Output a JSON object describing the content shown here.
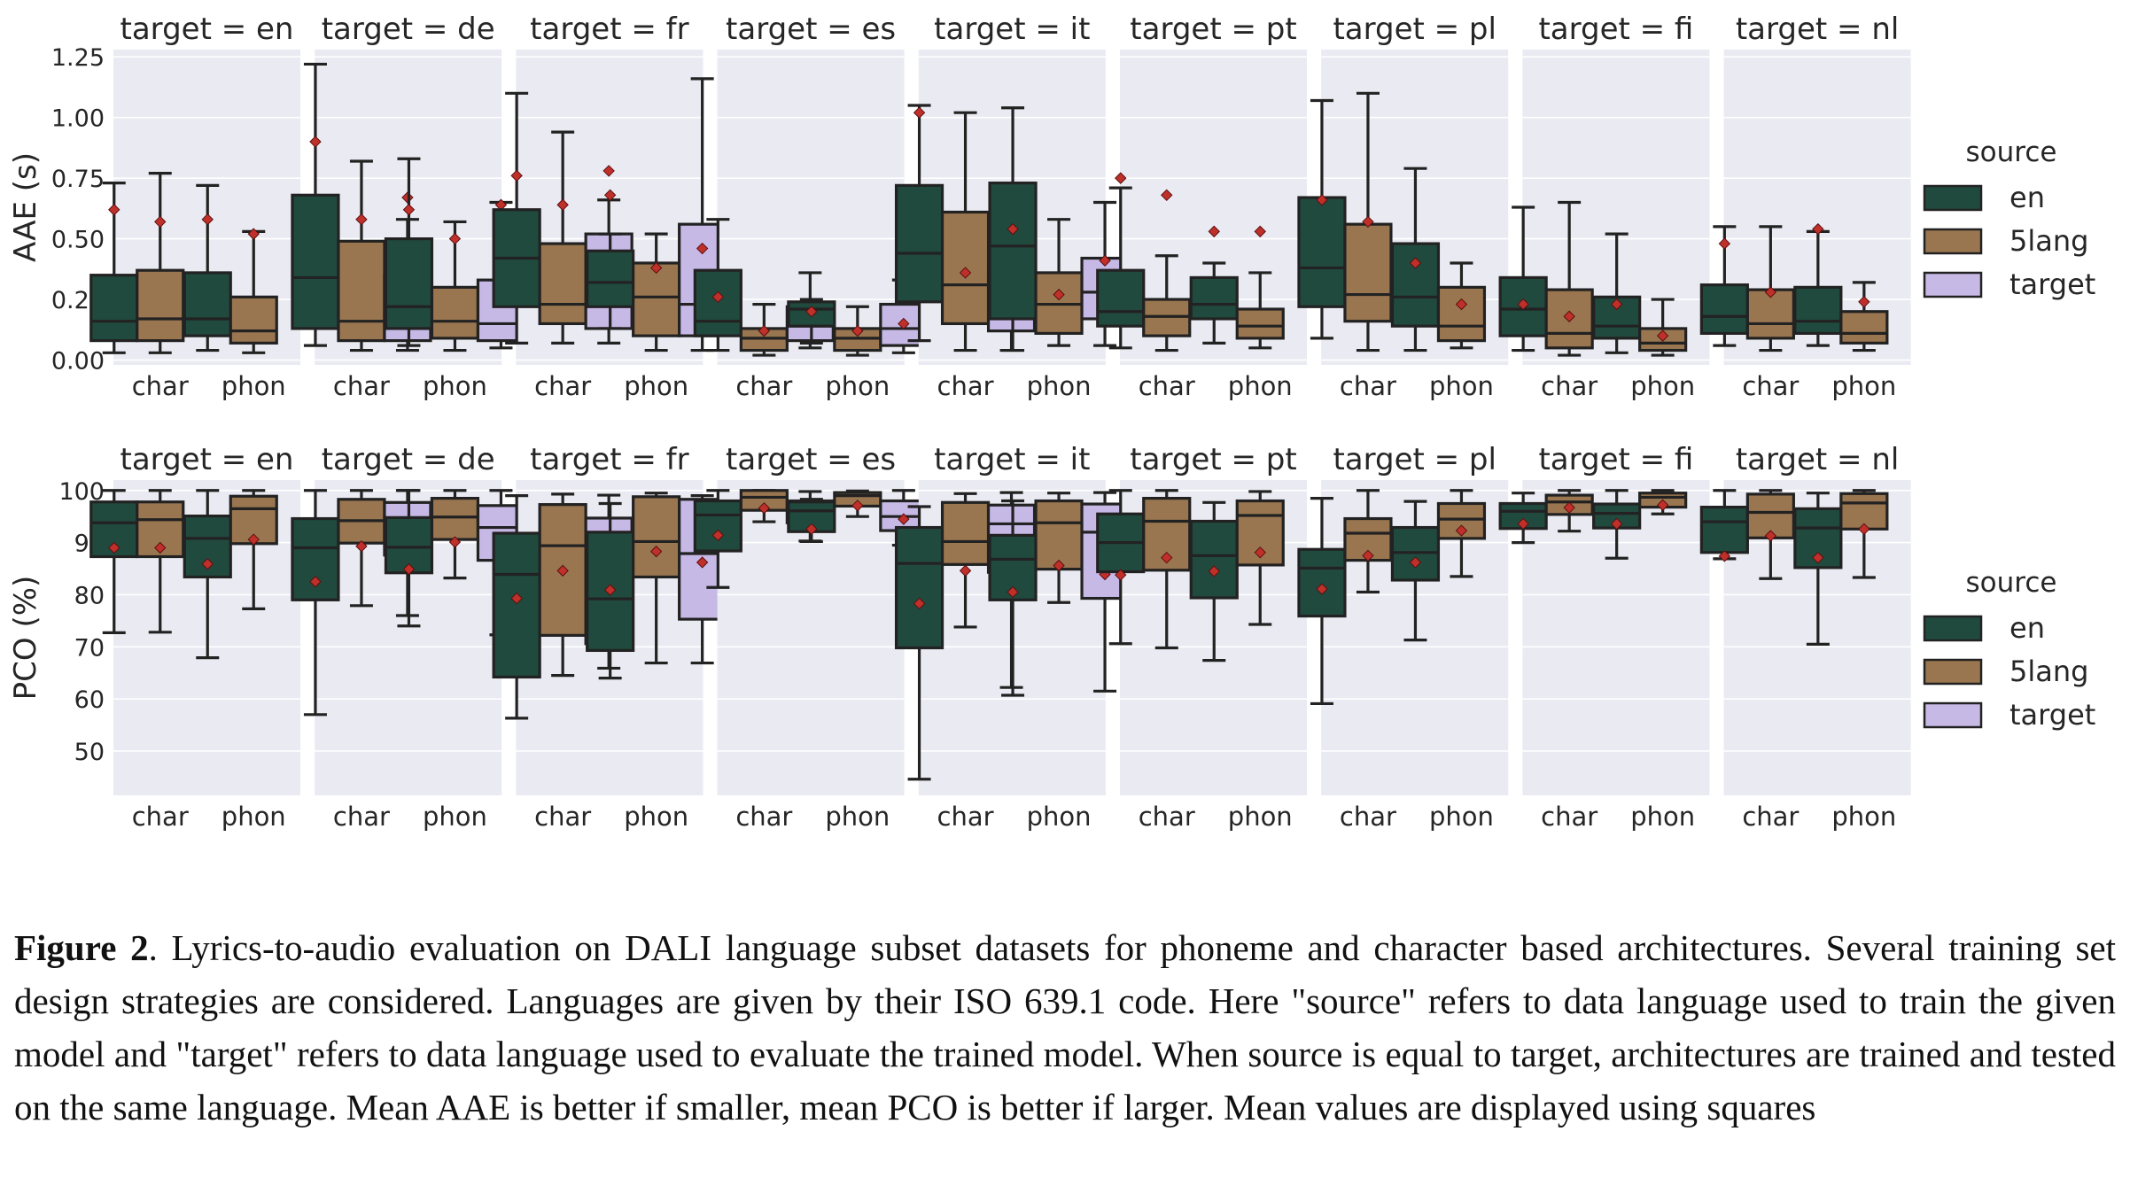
{
  "legend": {
    "title": "source",
    "entries": [
      {
        "label": "en",
        "color": "#214a3e"
      },
      {
        "label": "5lang",
        "color": "#9a7650"
      },
      {
        "label": "target",
        "color": "#c7b9e6"
      }
    ]
  },
  "mean_marker_color": "#c0302a",
  "chart_data": [
    {
      "type": "box",
      "facet_label_prefix": "target = ",
      "targets": [
        "en",
        "de",
        "fr",
        "es",
        "it",
        "pt",
        "pl",
        "fi",
        "nl"
      ],
      "categories": [
        "char",
        "phon"
      ],
      "sources": [
        "en",
        "5lang",
        "target"
      ],
      "ylabel": "AAE (s)",
      "ylim": [
        -0.02,
        1.28
      ],
      "yticks": [
        0.0,
        0.25,
        0.5,
        0.75,
        1.0,
        1.25
      ],
      "ytick_labels": [
        "0.00",
        "0.25",
        "0.50",
        "0.75",
        "1.00",
        "1.25"
      ],
      "grid": true,
      "boxes": {
        "en": {
          "char": {
            "en": [
              0.03,
              0.08,
              0.16,
              0.35,
              0.73,
              0.62
            ],
            "5lang": [
              0.03,
              0.08,
              0.17,
              0.37,
              0.77,
              0.57
            ]
          },
          "phon": {
            "en": [
              0.04,
              0.1,
              0.17,
              0.36,
              0.72,
              0.58
            ],
            "5lang": [
              0.03,
              0.07,
              0.12,
              0.26,
              0.53,
              0.52
            ]
          }
        },
        "de": {
          "char": {
            "en": [
              0.06,
              0.13,
              0.34,
              0.68,
              1.22,
              0.9
            ],
            "5lang": [
              0.04,
              0.08,
              0.16,
              0.49,
              0.82,
              0.58
            ],
            "target": [
              0.04,
              0.08,
              0.17,
              0.35,
              0.58,
              0.67
            ]
          },
          "phon": {
            "en": [
              0.06,
              0.13,
              0.22,
              0.5,
              0.83,
              0.62
            ],
            "5lang": [
              0.04,
              0.09,
              0.16,
              0.3,
              0.57,
              0.5
            ],
            "target": [
              0.05,
              0.08,
              0.15,
              0.33,
              0.65,
              0.64
            ]
          }
        },
        "fr": {
          "char": {
            "en": [
              0.07,
              0.22,
              0.42,
              0.62,
              1.1,
              0.76
            ],
            "5lang": [
              0.07,
              0.15,
              0.23,
              0.48,
              0.94,
              0.64
            ],
            "target": [
              0.07,
              0.13,
              0.42,
              0.52,
              0.66,
              0.78
            ]
          },
          "phon": {
            "en": [
              0.13,
              0.22,
              0.32,
              0.45,
              0.52,
              0.68
            ],
            "5lang": [
              0.04,
              0.1,
              0.26,
              0.4,
              0.52,
              0.38
            ],
            "target": [
              0.04,
              0.1,
              0.23,
              0.56,
              1.16,
              0.46
            ]
          }
        },
        "es": {
          "char": {
            "en": [
              0.04,
              0.1,
              0.16,
              0.37,
              0.58,
              0.26
            ],
            "5lang": [
              0.02,
              0.04,
              0.09,
              0.13,
              0.23,
              0.12
            ],
            "target": [
              0.05,
              0.08,
              0.14,
              0.22,
              0.36,
              0.16
            ]
          },
          "phon": {
            "en": [
              0.07,
              0.14,
              0.21,
              0.24,
              0.25,
              0.2
            ],
            "5lang": [
              0.02,
              0.04,
              0.09,
              0.13,
              0.22,
              0.12
            ],
            "target": [
              0.03,
              0.06,
              0.13,
              0.23,
              0.33,
              0.15
            ]
          }
        },
        "it": {
          "char": {
            "en": [
              0.08,
              0.24,
              0.44,
              0.72,
              1.05,
              1.02
            ],
            "5lang": [
              0.04,
              0.15,
              0.31,
              0.61,
              1.02,
              0.36
            ],
            "target": [
              0.04,
              0.12,
              0.25,
              0.37,
              0.72,
              0.34
            ]
          },
          "phon": {
            "en": [
              0.04,
              0.17,
              0.47,
              0.73,
              1.04,
              0.54
            ],
            "5lang": [
              0.06,
              0.11,
              0.23,
              0.36,
              0.58,
              0.27
            ],
            "target": [
              0.06,
              0.17,
              0.28,
              0.42,
              0.65,
              0.41
            ]
          }
        },
        "pt": {
          "char": {
            "en": [
              0.05,
              0.14,
              0.2,
              0.37,
              0.71,
              0.75
            ],
            "5lang": [
              0.04,
              0.1,
              0.18,
              0.25,
              0.43,
              0.68
            ],
            "target": []
          },
          "phon": {
            "en": [
              0.07,
              0.17,
              0.23,
              0.34,
              0.4,
              0.53
            ],
            "5lang": [
              0.05,
              0.09,
              0.14,
              0.21,
              0.36,
              0.53
            ],
            "target": []
          }
        },
        "pl": {
          "char": {
            "en": [
              0.09,
              0.22,
              0.38,
              0.67,
              1.07,
              0.66
            ],
            "5lang": [
              0.04,
              0.16,
              0.27,
              0.56,
              1.1,
              0.57
            ],
            "target": []
          },
          "phon": {
            "en": [
              0.04,
              0.14,
              0.26,
              0.48,
              0.79,
              0.4
            ],
            "5lang": [
              0.05,
              0.08,
              0.14,
              0.3,
              0.4,
              0.23
            ],
            "target": []
          }
        },
        "fi": {
          "char": {
            "en": [
              0.04,
              0.1,
              0.21,
              0.34,
              0.63,
              0.23
            ],
            "5lang": [
              0.02,
              0.05,
              0.11,
              0.29,
              0.65,
              0.18
            ],
            "target": []
          },
          "phon": {
            "en": [
              0.03,
              0.09,
              0.14,
              0.26,
              0.52,
              0.23
            ],
            "5lang": [
              0.02,
              0.04,
              0.07,
              0.13,
              0.25,
              0.1
            ],
            "target": []
          }
        },
        "nl": {
          "char": {
            "en": [
              0.06,
              0.11,
              0.18,
              0.31,
              0.55,
              0.48
            ],
            "5lang": [
              0.04,
              0.09,
              0.15,
              0.29,
              0.55,
              0.28
            ],
            "target": []
          },
          "phon": {
            "en": [
              0.06,
              0.11,
              0.16,
              0.3,
              0.53,
              0.54
            ],
            "5lang": [
              0.04,
              0.07,
              0.11,
              0.2,
              0.32,
              0.24
            ],
            "target": []
          }
        }
      }
    },
    {
      "type": "box",
      "facet_label_prefix": "target = ",
      "targets": [
        "en",
        "de",
        "fr",
        "es",
        "it",
        "pt",
        "pl",
        "fi",
        "nl"
      ],
      "categories": [
        "char",
        "phon"
      ],
      "sources": [
        "en",
        "5lang",
        "target"
      ],
      "ylabel": "PCO (%)",
      "ylim": [
        41.5,
        102
      ],
      "yticks": [
        50,
        60,
        70,
        80,
        90,
        100
      ],
      "ytick_labels": [
        "50",
        "60",
        "70",
        "80",
        "90",
        "100"
      ],
      "grid": true,
      "boxes": {
        "en": {
          "char": {
            "en": [
              72.7,
              87.3,
              93.8,
              97.8,
              100,
              89
            ],
            "5lang": [
              72.8,
              87.3,
              94.4,
              97.8,
              100,
              89
            ]
          },
          "phon": {
            "en": [
              67.9,
              83.4,
              90.8,
              95.1,
              100,
              85.9
            ],
            "5lang": [
              77.3,
              89.8,
              96.5,
              98.9,
              100,
              90.6
            ]
          }
        },
        "de": {
          "char": {
            "en": [
              57,
              79,
              89,
              94.6,
              100,
              82.5
            ],
            "5lang": [
              77.9,
              89.9,
              94.2,
              98.3,
              100,
              89.3
            ],
            "target": [
              76,
              87.6,
              94,
              97.7,
              100,
              88.1
            ]
          },
          "phon": {
            "en": [
              74,
              84.2,
              89.1,
              94.8,
              100,
              84.9
            ],
            "5lang": [
              83.2,
              90.6,
              94.9,
              98.5,
              100,
              90.1
            ],
            "target": [
              72.3,
              86.6,
              92.9,
              97.1,
              100,
              87.9
            ]
          }
        },
        "fr": {
          "char": {
            "en": [
              56.3,
              64.2,
              83.9,
              91.8,
              99,
              79.3
            ],
            "5lang": [
              64.5,
              72.2,
              89.4,
              97.3,
              99.3,
              84.6
            ],
            "target": [
              65.9,
              70.6,
              83.3,
              94.7,
              99.1,
              82.8
            ]
          },
          "phon": {
            "en": [
              64,
              69.3,
              79.2,
              92,
              97.5,
              80.9
            ],
            "5lang": [
              66.9,
              83.4,
              90.2,
              98.8,
              99.5,
              88.3
            ],
            "target": [
              66.9,
              75.3,
              87.9,
              98.3,
              99,
              86.2
            ]
          }
        },
        "es": {
          "char": {
            "en": [
              81.4,
              88.4,
              95.3,
              98,
              100,
              91.4
            ],
            "5lang": [
              94,
              96.2,
              98.7,
              100,
              100,
              96.6
            ],
            "target": [
              90.3,
              93.8,
              96,
              98,
              99.8,
              96.5
            ]
          },
          "phon": {
            "en": [
              90.2,
              92.1,
              96.1,
              97.8,
              98.3,
              92.6
            ],
            "5lang": [
              95,
              97,
              99,
              99.6,
              99.9,
              97.1
            ],
            "target": [
              89.5,
              92.3,
              95,
              98,
              100,
              94.5
            ]
          }
        },
        "it": {
          "char": {
            "en": [
              44.6,
              69.8,
              86,
              92.9,
              96.9,
              78.3
            ],
            "5lang": [
              73.8,
              85.8,
              90.2,
              97.7,
              99.4,
              84.6
            ],
            "target": [
              62.2,
              84.3,
              93.6,
              97.2,
              99.6,
              84.7
            ]
          },
          "phon": {
            "en": [
              60.7,
              79,
              86.8,
              91.4,
              98,
              80.5
            ],
            "5lang": [
              78.5,
              84.9,
              93.8,
              98,
              99.5,
              85.6
            ],
            "target": [
              61.5,
              79.3,
              92,
              97.4,
              99.6,
              83.9
            ]
          }
        },
        "pt": {
          "char": {
            "en": [
              70.6,
              84.4,
              90,
              95.5,
              100,
              83.8
            ],
            "5lang": [
              69.8,
              84.7,
              94.1,
              98.5,
              100,
              87.1
            ],
            "target": []
          },
          "phon": {
            "en": [
              67.4,
              79.4,
              87.5,
              94.1,
              97.7,
              84.5
            ],
            "5lang": [
              74.3,
              85.7,
              95.2,
              98,
              99.8,
              88.1
            ],
            "target": []
          }
        },
        "pl": {
          "char": {
            "en": [
              59.1,
              75.9,
              85.1,
              88.7,
              98.5,
              81.1
            ],
            "5lang": [
              80.5,
              86.6,
              91.8,
              94.6,
              100,
              87.5
            ],
            "target": []
          },
          "phon": {
            "en": [
              71.3,
              82.8,
              88.1,
              92.9,
              97.9,
              86.2
            ],
            "5lang": [
              83.5,
              90.8,
              94.5,
              97.5,
              100,
              92.3
            ],
            "target": []
          }
        },
        "fi": {
          "char": {
            "en": [
              90,
              92.7,
              96,
              97.5,
              99.5,
              93.6
            ],
            "5lang": [
              92.2,
              95.4,
              97.8,
              99.1,
              100,
              96.7
            ],
            "target": []
          },
          "phon": {
            "en": [
              87,
              92.8,
              95.6,
              97.4,
              100,
              93.6
            ],
            "5lang": [
              95.5,
              96.8,
              98.7,
              99.5,
              100,
              97.2
            ],
            "target": []
          }
        },
        "nl": {
          "char": {
            "en": [
              86.9,
              88.1,
              94,
              96.8,
              100,
              87.4
            ],
            "5lang": [
              83.1,
              90.9,
              95.8,
              99.3,
              100,
              91.3
            ],
            "target": []
          },
          "phon": {
            "en": [
              70.5,
              85.2,
              92.8,
              96.5,
              99.5,
              87.1
            ],
            "5lang": [
              83.3,
              92.6,
              97.6,
              99.4,
              100,
              92.6
            ],
            "target": []
          }
        }
      }
    }
  ],
  "caption": {
    "label": "Figure 2",
    "text": ".  Lyrics-to-audio evaluation on DALI language subset datasets for phoneme and character based architectures. Several training set design strategies are considered. Languages are given by their ISO 639.1 code. Here \"source\" refers to data language used to train the given model and \"target\" refers to data language used to evaluate the trained model. When source is equal to target, architectures are trained and tested on the same language. Mean AAE is better if smaller, mean PCO is better if larger. Mean values are displayed using squares"
  }
}
